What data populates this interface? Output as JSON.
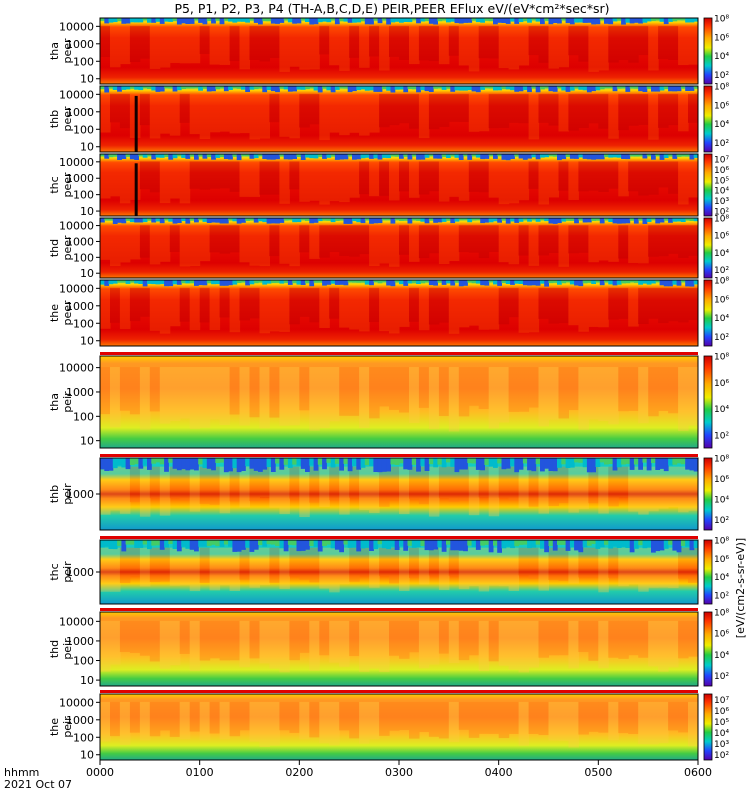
{
  "chart_data": {
    "type": "heatmap",
    "title": "P5, P1, P2, P3, P4 (TH-A,B,C,D,E) PEIR,PEER EFlux eV/(eV*cm²*sec*sr)",
    "x_label_1": "hhmm",
    "x_label_2": "2021 Oct 07",
    "x_ticks": [
      "0000",
      "0100",
      "0200",
      "0300",
      "0400",
      "0500",
      "0600"
    ],
    "x_range_hours": [
      0,
      6
    ],
    "colorbar_unit": "[eV/(cm2-s-sr-eV)]",
    "panels": [
      {
        "label1": "tha",
        "label2": "peer",
        "species": "electron",
        "ticks": [
          "10",
          "100",
          "1000",
          "10000"
        ],
        "cbar_ticks": [
          "10²",
          "10⁴",
          "10⁶",
          "10⁸"
        ],
        "cbar_range": [
          1,
          8
        ]
      },
      {
        "label1": "thb",
        "label2": "peer",
        "species": "electron",
        "ticks": [
          "10",
          "100",
          "1000",
          "10000"
        ],
        "cbar_ticks": [
          "10²",
          "10⁴",
          "10⁶",
          "10⁸"
        ],
        "cbar_range": [
          1,
          8
        ]
      },
      {
        "label1": "thc",
        "label2": "peer",
        "species": "electron",
        "ticks": [
          "10",
          "100",
          "1000",
          "10000"
        ],
        "cbar_ticks": [
          "10²",
          "10³",
          "10⁴",
          "10⁵",
          "10⁶",
          "10⁷"
        ],
        "cbar_range": [
          1.5,
          7.5
        ]
      },
      {
        "label1": "thd",
        "label2": "peer",
        "species": "electron",
        "ticks": [
          "10",
          "100",
          "1000",
          "10000"
        ],
        "cbar_ticks": [
          "10²",
          "10⁴",
          "10⁶",
          "10⁸"
        ],
        "cbar_range": [
          1,
          8
        ]
      },
      {
        "label1": "the",
        "label2": "peer",
        "species": "electron",
        "ticks": [
          "10",
          "100",
          "1000",
          "10000"
        ],
        "cbar_ticks": [
          "10²",
          "10⁴",
          "10⁶",
          "10⁸"
        ],
        "cbar_range": [
          1,
          8
        ]
      },
      {
        "label1": "tha",
        "label2": "peir",
        "species": "ion",
        "ticks": [
          "10",
          "100",
          "1000",
          "10000"
        ],
        "cbar_ticks": [
          "10²",
          "10⁴",
          "10⁶",
          "10⁸"
        ],
        "cbar_range": [
          1,
          8
        ]
      },
      {
        "label1": "thb",
        "label2": "peir",
        "species": "ion-narrow",
        "ticks": [
          "1000"
        ],
        "cbar_ticks": [
          "10²",
          "10⁴",
          "10⁶",
          "10⁸"
        ],
        "cbar_range": [
          1,
          8
        ]
      },
      {
        "label1": "thc",
        "label2": "peir",
        "species": "ion-narrow",
        "ticks": [
          "1000"
        ],
        "cbar_ticks": [
          "10²",
          "10⁴",
          "10⁶",
          "10⁸"
        ],
        "cbar_range": [
          1,
          8
        ]
      },
      {
        "label1": "thd",
        "label2": "peir",
        "species": "ion",
        "ticks": [
          "10",
          "100",
          "1000",
          "10000"
        ],
        "cbar_ticks": [
          "10²",
          "10⁴",
          "10⁶",
          "10⁸"
        ],
        "cbar_range": [
          1,
          8
        ]
      },
      {
        "label1": "the",
        "label2": "peir",
        "species": "ion",
        "ticks": [
          "10",
          "100",
          "1000",
          "10000"
        ],
        "cbar_ticks": [
          "10²",
          "10³",
          "10⁴",
          "10⁵",
          "10⁶",
          "10⁷"
        ],
        "cbar_range": [
          1.5,
          7.5
        ]
      }
    ],
    "colors": {
      "background": "#ffffff",
      "axis": "#000000",
      "status_bar": "#e00000"
    }
  }
}
